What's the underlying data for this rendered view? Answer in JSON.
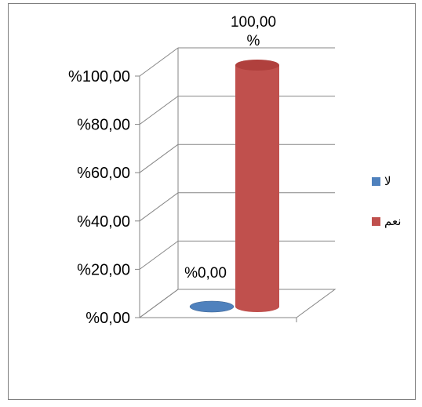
{
  "chart_data": {
    "type": "bar",
    "style": "3d-cylinder",
    "categories": [
      "لا",
      "نعم"
    ],
    "values": [
      0,
      100
    ],
    "value_labels": [
      "%0,00",
      "100,00\n%"
    ],
    "colors": [
      "#4F81BD",
      "#C0504D"
    ],
    "y_ticks": [
      "%0,00",
      "%20,00",
      "%40,00",
      "%60,00",
      "%80,00",
      "%100,00"
    ],
    "ylim": [
      0,
      100
    ],
    "grid": true,
    "legend": {
      "position": "right",
      "entries": [
        {
          "label": "لا",
          "color": "#4F81BD"
        },
        {
          "label": "نعم",
          "color": "#C0504D"
        }
      ]
    }
  }
}
